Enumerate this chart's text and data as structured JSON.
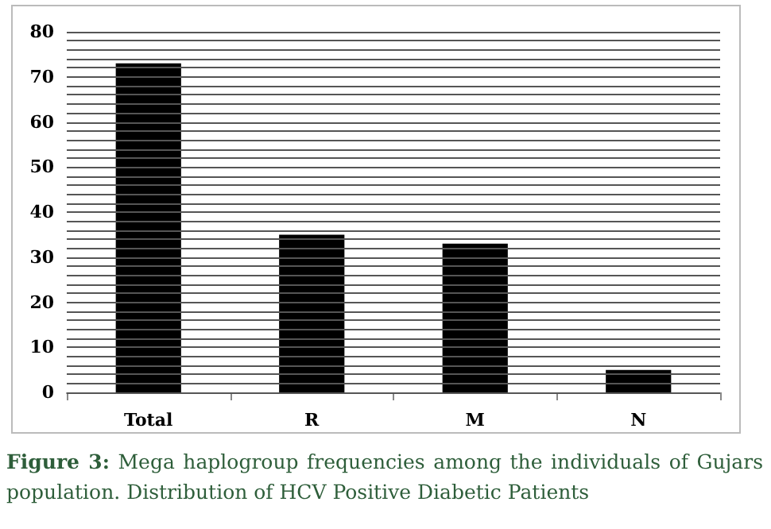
{
  "chart_data": {
    "type": "bar",
    "categories": [
      "Total",
      "R",
      "M",
      "N"
    ],
    "values": [
      73,
      35,
      33,
      5
    ],
    "color": "#000000",
    "ylim": [
      0,
      80
    ],
    "yticks": [
      0,
      {
        "value": 2,
        "label": null
      },
      {
        "value": 4,
        "label": null
      },
      {
        "value": 6,
        "label": null
      },
      {
        "value": 8,
        "label": null
      },
      10,
      {
        "value": 12,
        "label": null
      },
      {
        "value": 14,
        "label": null
      },
      {
        "value": 16,
        "label": null
      },
      {
        "value": 18,
        "label": null
      },
      20,
      {
        "value": 22,
        "label": null
      },
      {
        "value": 24,
        "label": null
      },
      {
        "value": 26,
        "label": null
      },
      {
        "value": 28,
        "label": null
      },
      30,
      {
        "value": 32,
        "label": null
      },
      {
        "value": 34,
        "label": null
      },
      {
        "value": 36,
        "label": null
      },
      {
        "value": 38,
        "label": null
      },
      40,
      {
        "value": 42,
        "label": null
      },
      {
        "value": 44,
        "label": null
      },
      {
        "value": 46,
        "label": null
      },
      {
        "value": 48,
        "label": null
      },
      50,
      {
        "value": 52,
        "label": null
      },
      {
        "value": 54,
        "label": null
      },
      {
        "value": 56,
        "label": null
      },
      {
        "value": 58,
        "label": null
      },
      60,
      {
        "value": 62,
        "label": null
      },
      {
        "value": 64,
        "label": null
      },
      {
        "value": 66,
        "label": null
      },
      {
        "value": 68,
        "label": null
      },
      70,
      {
        "value": 72,
        "label": null
      },
      {
        "value": 74,
        "label": null
      },
      {
        "value": 76,
        "label": null
      },
      {
        "value": 78,
        "label": null
      },
      80
    ],
    "grid": "y",
    "annotations": [
      "Figure 3: Mega haplogroup frequencies among the individuals of Gujars population. Distribution of HCV Positive Diabetic Patients"
    ]
  }
}
